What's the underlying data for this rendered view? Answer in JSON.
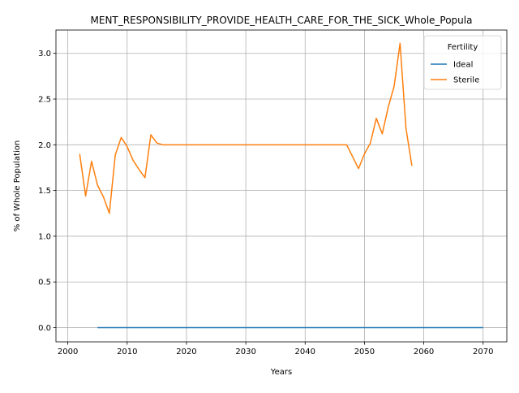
{
  "chart_data": {
    "type": "line",
    "title": "MENT_RESPONSIBILITY_PROVIDE_HEALTH_CARE_FOR_THE_SICK_Whole_Popula",
    "xlabel": "Years",
    "ylabel": "% of Whole Population",
    "xlim": [
      1998,
      2074
    ],
    "ylim": [
      -0.155,
      3.255
    ],
    "xticks": [
      2000,
      2010,
      2020,
      2030,
      2040,
      2050,
      2060,
      2070
    ],
    "yticks": [
      0.0,
      0.5,
      1.0,
      1.5,
      2.0,
      2.5,
      3.0
    ],
    "grid": true,
    "legend": {
      "title": "Fertility",
      "placement": "top-right"
    },
    "series": [
      {
        "name": "Ideal",
        "color": "#1f77b4",
        "x": [
          2005,
          2070
        ],
        "y": [
          0.0,
          0.0
        ]
      },
      {
        "name": "Sterile",
        "color": "#ff7f0e",
        "x": [
          2002,
          2003,
          2004,
          2005,
          2006,
          2007,
          2008,
          2009,
          2010,
          2011,
          2012,
          2013,
          2014,
          2015,
          2016,
          2017,
          2020,
          2025,
          2030,
          2035,
          2040,
          2045,
          2047,
          2048,
          2049,
          2050,
          2051,
          2052,
          2053,
          2054,
          2055,
          2056,
          2057,
          2058
        ],
        "y": [
          1.9,
          1.44,
          1.82,
          1.56,
          1.43,
          1.25,
          1.89,
          2.08,
          1.98,
          1.83,
          1.73,
          1.64,
          2.11,
          2.02,
          2.0,
          2.0,
          2.0,
          2.0,
          2.0,
          2.0,
          2.0,
          2.0,
          2.0,
          1.87,
          1.74,
          1.9,
          2.02,
          2.29,
          2.12,
          2.41,
          2.64,
          3.11,
          2.18,
          1.77
        ]
      }
    ]
  }
}
